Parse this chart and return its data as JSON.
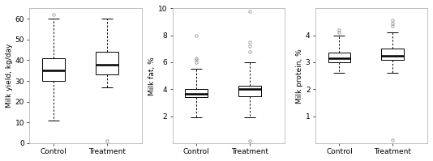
{
  "panel1": {
    "ylabel": "Milk yield, kg/day",
    "xlabels": [
      "Control",
      "Treatment"
    ],
    "ylim": [
      0,
      65
    ],
    "yticks": [
      0,
      10,
      20,
      30,
      40,
      50,
      60
    ],
    "control": {
      "whisker_low": 11,
      "q1": 30,
      "median": 35,
      "q3": 41,
      "whisker_high": 60,
      "outliers_high": [
        62
      ],
      "outliers_low": []
    },
    "treatment": {
      "whisker_low": 27,
      "q1": 33,
      "median": 38,
      "q3": 44,
      "whisker_high": 60,
      "outliers_high": [],
      "outliers_low": [
        1
      ]
    }
  },
  "panel2": {
    "ylabel": "Milk fat, %",
    "xlabels": [
      "Control",
      "Treatment"
    ],
    "ylim": [
      0,
      10
    ],
    "yticks": [
      2,
      4,
      6,
      8,
      10
    ],
    "control": {
      "whisker_low": 1.9,
      "q1": 3.4,
      "median": 3.65,
      "q3": 4.0,
      "whisker_high": 5.5,
      "outliers_high": [
        6.0,
        6.15,
        6.3,
        8.0
      ],
      "outliers_low": []
    },
    "treatment": {
      "whisker_low": 1.9,
      "q1": 3.5,
      "median": 4.0,
      "q3": 4.25,
      "whisker_high": 6.0,
      "outliers_high": [
        6.8,
        7.2,
        7.5,
        9.8
      ],
      "outliers_low": [
        0.15
      ]
    }
  },
  "panel3": {
    "ylabel": "Milk protein, %",
    "xlabels": [
      "Control",
      "Treatment"
    ],
    "ylim": [
      0,
      5
    ],
    "yticks": [
      1,
      2,
      3,
      4
    ],
    "control": {
      "whisker_low": 2.6,
      "q1": 3.0,
      "median": 3.15,
      "q3": 3.35,
      "whisker_high": 4.0,
      "outliers_high": [
        4.1,
        4.2
      ],
      "outliers_low": []
    },
    "treatment": {
      "whisker_low": 2.6,
      "q1": 3.1,
      "median": 3.25,
      "q3": 3.5,
      "whisker_high": 4.1,
      "outliers_high": [
        4.35,
        4.45,
        4.55
      ],
      "outliers_low": [
        0.1
      ]
    }
  },
  "bg_color": "#ffffff",
  "box_facecolor": "#ffffff",
  "line_color": "#000000",
  "median_color": "#000000",
  "outlier_color": "#999999",
  "spine_color": "#aaaaaa"
}
